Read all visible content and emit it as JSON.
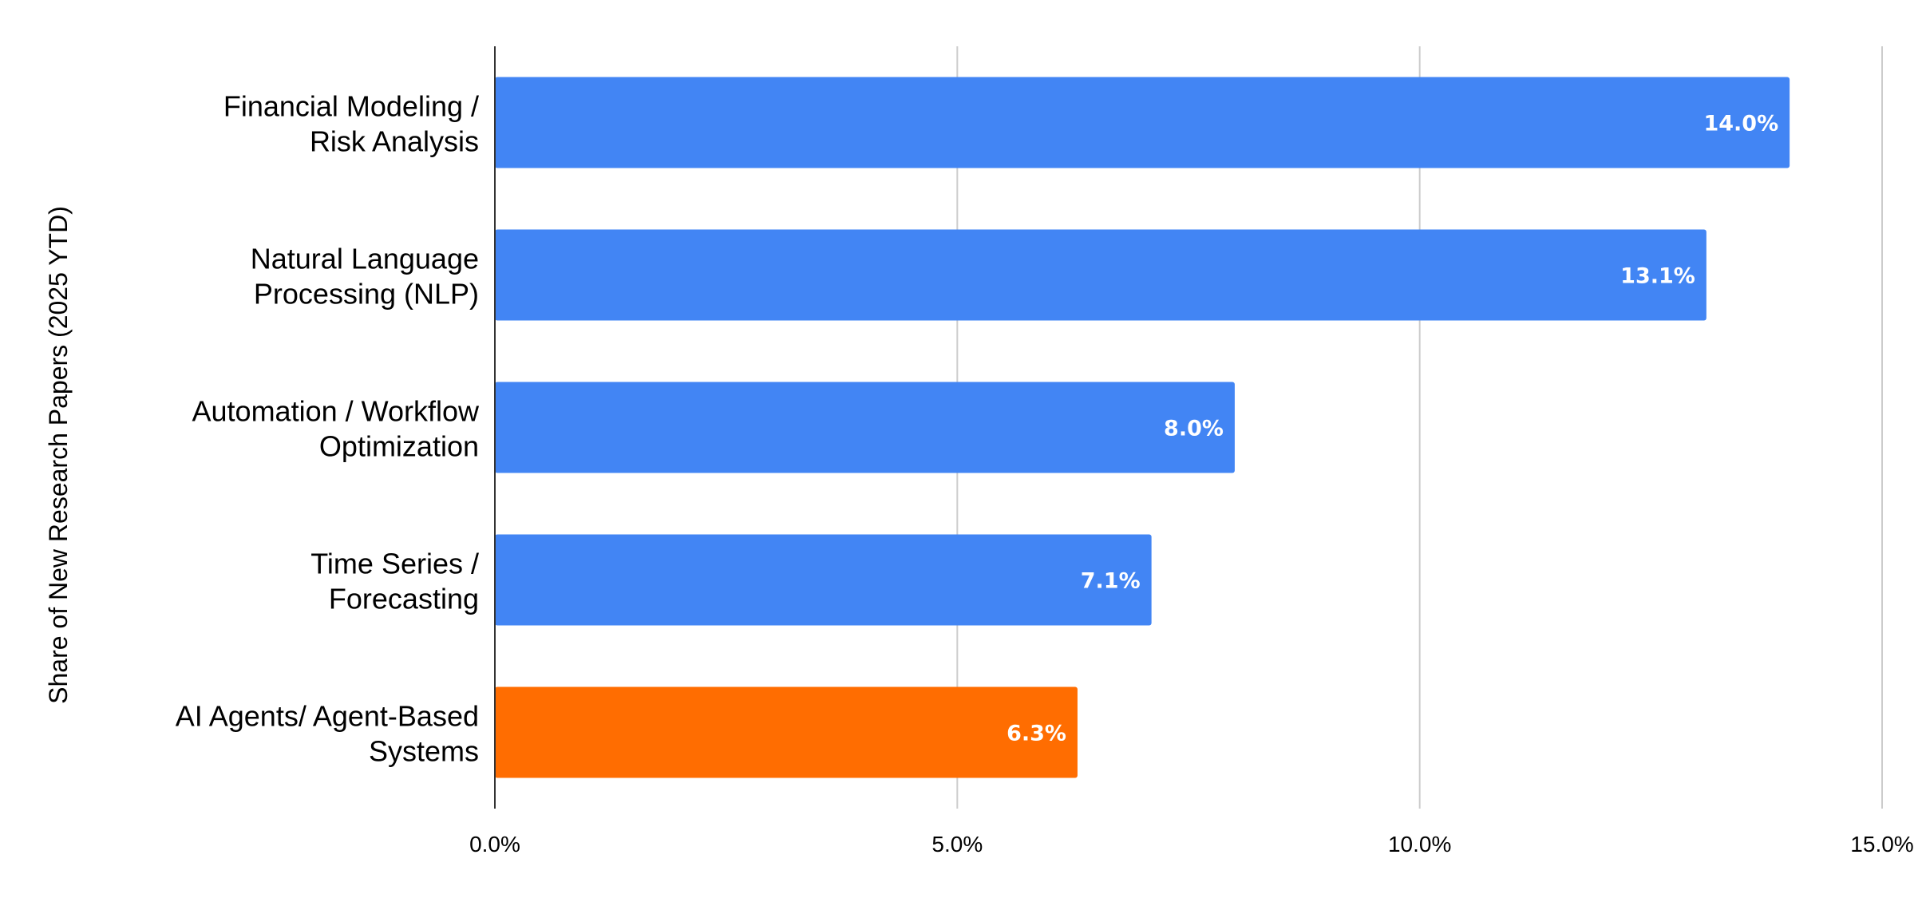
{
  "chart_data": {
    "type": "bar",
    "orientation": "horizontal",
    "title": "",
    "xlabel": "",
    "ylabel": "Share of New Research Papers (2025 YTD)",
    "categories": [
      [
        "Financial Modeling /",
        "Risk Analysis"
      ],
      [
        "Natural Language",
        "Processing (NLP)"
      ],
      [
        "Automation / Workflow",
        "Optimization"
      ],
      [
        "Time Series /",
        "Forecasting"
      ],
      [
        "AI Agents/ Agent-Based",
        "Systems"
      ]
    ],
    "values": [
      14.0,
      13.1,
      8.0,
      7.1,
      6.3
    ],
    "data_labels": [
      "14.0%",
      "13.1%",
      "8.0%",
      "7.1%",
      "6.3%"
    ],
    "colors": [
      "#4285f4",
      "#4285f4",
      "#4285f4",
      "#4285f4",
      "#ff6d01"
    ],
    "xlim": [
      0,
      15
    ],
    "xticks": [
      0,
      5,
      10,
      15
    ],
    "xtick_labels": [
      "0.0%",
      "5.0%",
      "10.0%",
      "15.0%"
    ],
    "grid": "vertical",
    "legend": "none"
  }
}
